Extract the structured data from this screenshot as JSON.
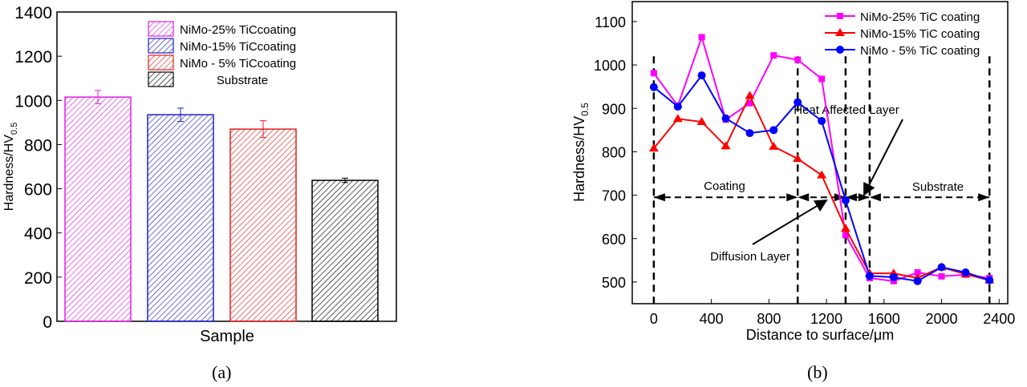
{
  "chart_data": [
    {
      "type": "bar",
      "panel_label": "(a)",
      "xlabel": "Sample",
      "ylabel": "Hardness/HV",
      "ylabel_sub": "0.5",
      "ylim": [
        0,
        1400
      ],
      "yticks": [
        0,
        200,
        400,
        600,
        800,
        1000,
        1200,
        1400
      ],
      "legend_position": "top-center",
      "fill": "diagonal-hatch",
      "series": [
        {
          "name": "NiMo-25% TiCcoating",
          "value": 1015,
          "error": 30,
          "color": "#e020e0"
        },
        {
          "name": "NiMo-15% TiCcoating",
          "value": 935,
          "error": 30,
          "color": "#2020c8"
        },
        {
          "name": "NiMo - 5% TiCcoating",
          "value": 870,
          "error": 38,
          "color": "#e02020"
        },
        {
          "name": "Substrate",
          "value": 638,
          "error": 10,
          "color": "#000000"
        }
      ]
    },
    {
      "type": "line",
      "panel_label": "(b)",
      "xlabel": "Distance to surface/μm",
      "ylabel": "Hardness/HV",
      "ylabel_sub": "0.5",
      "xlim": [
        -150,
        2460
      ],
      "ylim": [
        450,
        1146
      ],
      "xticks": [
        0,
        400,
        800,
        1200,
        1600,
        2000,
        2400
      ],
      "yticks": [
        500,
        600,
        700,
        800,
        900,
        1000,
        1100
      ],
      "legend_position": "top-right",
      "x": [
        0,
        167,
        333,
        500,
        667,
        833,
        1000,
        1167,
        1333,
        1500,
        1667,
        1833,
        2000,
        2167,
        2333
      ],
      "series": [
        {
          "name": "NiMo-25% TiC coating",
          "marker": "square",
          "color": "#ff00ff",
          "values": [
            981,
            906,
            1064,
            874,
            912,
            1022,
            1012,
            968,
            608,
            509,
            502,
            522,
            513,
            517,
            509
          ]
        },
        {
          "name": "NiMo-15% TiC coating",
          "marker": "triangle",
          "color": "#ff0000",
          "values": [
            808,
            876,
            869,
            813,
            929,
            812,
            784,
            746,
            623,
            520,
            520,
            509,
            534,
            518,
            504
          ]
        },
        {
          "name": "NiMo - 5% TiC coating",
          "marker": "circle",
          "color": "#0000ff",
          "values": [
            949,
            904,
            976,
            877,
            843,
            850,
            914,
            871,
            688,
            514,
            511,
            502,
            534,
            522,
            504
          ]
        }
      ],
      "boundaries_x": [
        0,
        1000,
        1333,
        1500,
        2333
      ],
      "region_line_y": 695,
      "annotations": {
        "coating": "Coating",
        "substrate": "Substrate",
        "heat_affected": "Heat Affected Layer",
        "diffusion": "Diffusion Layer"
      }
    }
  ]
}
